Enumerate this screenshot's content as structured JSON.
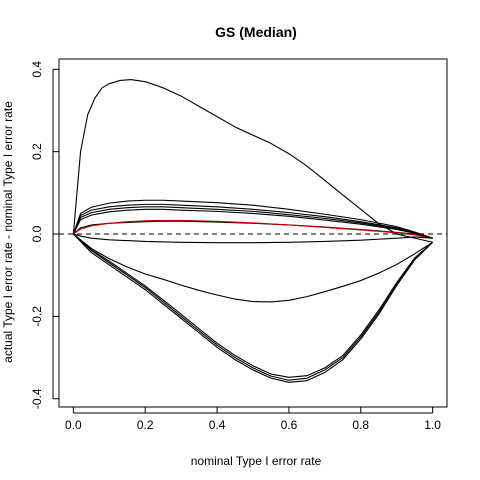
{
  "chart_data": {
    "type": "line",
    "title": "GS (Median)",
    "xlabel": "nominal Type I error rate",
    "ylabel": "actual Type I error rate - nominal Type I error rate",
    "xlim": [
      -0.04,
      1.04
    ],
    "ylim": [
      -0.42,
      0.425
    ],
    "xticks": [
      "0.0",
      "0.2",
      "0.4",
      "0.6",
      "0.8",
      "1.0"
    ],
    "yticks": [
      "-0.4",
      "-0.2",
      "0.0",
      "0.2",
      "0.4"
    ],
    "reference_line": {
      "y": 0,
      "style": "dashed",
      "color": "#000000"
    },
    "grid": false,
    "box": true,
    "series": [
      {
        "color": "#000000",
        "x": [
          0,
          0.005,
          0.01,
          0.02,
          0.04,
          0.06,
          0.08,
          0.1,
          0.13,
          0.16,
          0.2,
          0.25,
          0.3,
          0.35,
          0.4,
          0.45,
          0.5,
          0.55,
          0.6,
          0.65,
          0.7,
          0.75,
          0.8,
          0.85,
          0.9,
          0.95,
          1.0
        ],
        "y": [
          0,
          0.05,
          0.1,
          0.2,
          0.29,
          0.33,
          0.355,
          0.365,
          0.373,
          0.375,
          0.37,
          0.355,
          0.335,
          0.31,
          0.285,
          0.26,
          0.24,
          0.22,
          0.195,
          0.165,
          0.13,
          0.095,
          0.06,
          0.025,
          0.0,
          -0.01,
          -0.02
        ]
      },
      {
        "color": "#000000",
        "x": [
          0,
          0.02,
          0.05,
          0.1,
          0.15,
          0.2,
          0.25,
          0.3,
          0.4,
          0.5,
          0.6,
          0.7,
          0.8,
          0.9,
          0.95,
          1.0
        ],
        "y": [
          0,
          0.05,
          0.065,
          0.075,
          0.08,
          0.082,
          0.082,
          0.08,
          0.076,
          0.07,
          0.06,
          0.048,
          0.035,
          0.018,
          0.005,
          -0.01
        ]
      },
      {
        "color": "#000000",
        "x": [
          0,
          0.02,
          0.05,
          0.1,
          0.15,
          0.2,
          0.25,
          0.3,
          0.4,
          0.5,
          0.6,
          0.7,
          0.8,
          0.9,
          0.95,
          1.0
        ],
        "y": [
          0,
          0.045,
          0.058,
          0.066,
          0.07,
          0.072,
          0.072,
          0.07,
          0.066,
          0.06,
          0.052,
          0.042,
          0.03,
          0.015,
          0.004,
          -0.01
        ]
      },
      {
        "color": "#000000",
        "x": [
          0,
          0.02,
          0.05,
          0.1,
          0.15,
          0.2,
          0.25,
          0.3,
          0.4,
          0.5,
          0.6,
          0.7,
          0.8,
          0.9,
          0.95,
          1.0
        ],
        "y": [
          0,
          0.04,
          0.052,
          0.06,
          0.064,
          0.066,
          0.066,
          0.064,
          0.06,
          0.055,
          0.047,
          0.038,
          0.027,
          0.013,
          0.003,
          -0.01
        ]
      },
      {
        "color": "#000000",
        "x": [
          0,
          0.02,
          0.05,
          0.1,
          0.15,
          0.2,
          0.25,
          0.3,
          0.4,
          0.5,
          0.6,
          0.7,
          0.8,
          0.9,
          0.95,
          1.0
        ],
        "y": [
          0,
          0.035,
          0.046,
          0.054,
          0.058,
          0.06,
          0.06,
          0.058,
          0.055,
          0.05,
          0.043,
          0.034,
          0.024,
          0.011,
          0.002,
          -0.01
        ]
      },
      {
        "color": "#000000",
        "x": [
          0,
          0.02,
          0.05,
          0.1,
          0.15,
          0.2,
          0.25,
          0.3,
          0.4,
          0.5,
          0.6,
          0.7,
          0.8,
          0.9,
          0.95,
          1.0
        ],
        "y": [
          0,
          0.015,
          0.022,
          0.026,
          0.028,
          0.03,
          0.031,
          0.031,
          0.029,
          0.026,
          0.022,
          0.017,
          0.011,
          0.004,
          0.0,
          -0.01
        ]
      },
      {
        "color": "#cc0000",
        "x": [
          0,
          0.02,
          0.05,
          0.1,
          0.15,
          0.2,
          0.25,
          0.3,
          0.4,
          0.5,
          0.6,
          0.7,
          0.8,
          0.9,
          0.95,
          1.0
        ],
        "y": [
          0,
          0.012,
          0.02,
          0.026,
          0.03,
          0.032,
          0.033,
          0.033,
          0.031,
          0.027,
          0.022,
          0.016,
          0.01,
          0.003,
          -0.002,
          -0.01
        ]
      },
      {
        "color": "#000000",
        "x": [
          0,
          0.02,
          0.05,
          0.1,
          0.2,
          0.3,
          0.4,
          0.5,
          0.6,
          0.7,
          0.8,
          0.9,
          0.95,
          1.0
        ],
        "y": [
          0,
          -0.005,
          -0.01,
          -0.014,
          -0.018,
          -0.02,
          -0.021,
          -0.021,
          -0.02,
          -0.018,
          -0.015,
          -0.01,
          -0.007,
          -0.01
        ]
      },
      {
        "color": "#000000",
        "x": [
          0,
          0.05,
          0.1,
          0.15,
          0.2,
          0.25,
          0.3,
          0.35,
          0.4,
          0.45,
          0.5,
          0.55,
          0.6,
          0.65,
          0.7,
          0.75,
          0.8,
          0.85,
          0.9,
          0.95,
          1.0
        ],
        "y": [
          0,
          -0.035,
          -0.06,
          -0.08,
          -0.097,
          -0.11,
          -0.124,
          -0.137,
          -0.148,
          -0.158,
          -0.164,
          -0.165,
          -0.161,
          -0.152,
          -0.14,
          -0.127,
          -0.113,
          -0.095,
          -0.074,
          -0.048,
          -0.02
        ]
      },
      {
        "color": "#000000",
        "x": [
          0,
          0.05,
          0.1,
          0.15,
          0.2,
          0.25,
          0.3,
          0.35,
          0.4,
          0.45,
          0.5,
          0.55,
          0.6,
          0.65,
          0.7,
          0.75,
          0.8,
          0.85,
          0.9,
          0.95,
          1.0
        ],
        "y": [
          0,
          -0.04,
          -0.07,
          -0.1,
          -0.13,
          -0.165,
          -0.2,
          -0.235,
          -0.27,
          -0.3,
          -0.325,
          -0.345,
          -0.355,
          -0.35,
          -0.33,
          -0.3,
          -0.25,
          -0.19,
          -0.12,
          -0.06,
          -0.02
        ]
      },
      {
        "color": "#000000",
        "x": [
          0,
          0.05,
          0.1,
          0.15,
          0.2,
          0.25,
          0.3,
          0.35,
          0.4,
          0.45,
          0.5,
          0.55,
          0.6,
          0.65,
          0.7,
          0.75,
          0.8,
          0.85,
          0.9,
          0.95,
          1.0
        ],
        "y": [
          0,
          -0.045,
          -0.075,
          -0.105,
          -0.135,
          -0.17,
          -0.205,
          -0.24,
          -0.275,
          -0.305,
          -0.33,
          -0.35,
          -0.36,
          -0.356,
          -0.336,
          -0.305,
          -0.255,
          -0.195,
          -0.125,
          -0.063,
          -0.02
        ]
      },
      {
        "color": "#000000",
        "x": [
          0,
          0.05,
          0.1,
          0.15,
          0.2,
          0.25,
          0.3,
          0.35,
          0.4,
          0.45,
          0.5,
          0.55,
          0.6,
          0.65,
          0.7,
          0.75,
          0.8,
          0.85,
          0.9,
          0.95,
          1.0
        ],
        "y": [
          0,
          -0.038,
          -0.066,
          -0.096,
          -0.126,
          -0.16,
          -0.195,
          -0.23,
          -0.265,
          -0.295,
          -0.32,
          -0.34,
          -0.348,
          -0.344,
          -0.325,
          -0.295,
          -0.245,
          -0.185,
          -0.118,
          -0.058,
          -0.02
        ]
      }
    ]
  }
}
